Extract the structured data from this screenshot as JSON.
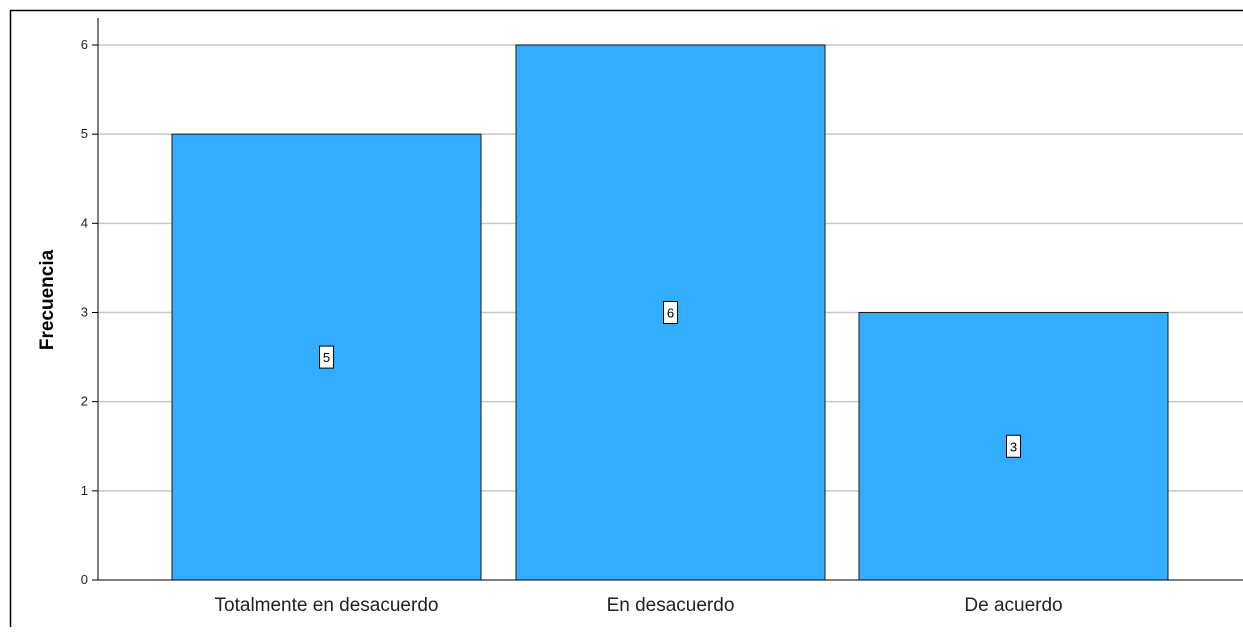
{
  "chart_data": {
    "type": "bar",
    "categories": [
      "Totalmente en desacuerdo",
      "En desacuerdo",
      "De acuerdo"
    ],
    "values": [
      5,
      6,
      3
    ],
    "data_labels": [
      "5",
      "6",
      "3"
    ],
    "title": "",
    "xlabel": "",
    "ylabel": "Frecuencia",
    "ylim": [
      0,
      6
    ],
    "yticks": [
      "0",
      "1",
      "2",
      "3",
      "4",
      "5",
      "6"
    ],
    "grid": true,
    "legend": "none",
    "colors": {
      "bar_fill": "#33adff",
      "bar_stroke": "#1a1a1a",
      "gridline": "#c8c8c8",
      "axis": "#000000",
      "frame": "#000000"
    }
  }
}
